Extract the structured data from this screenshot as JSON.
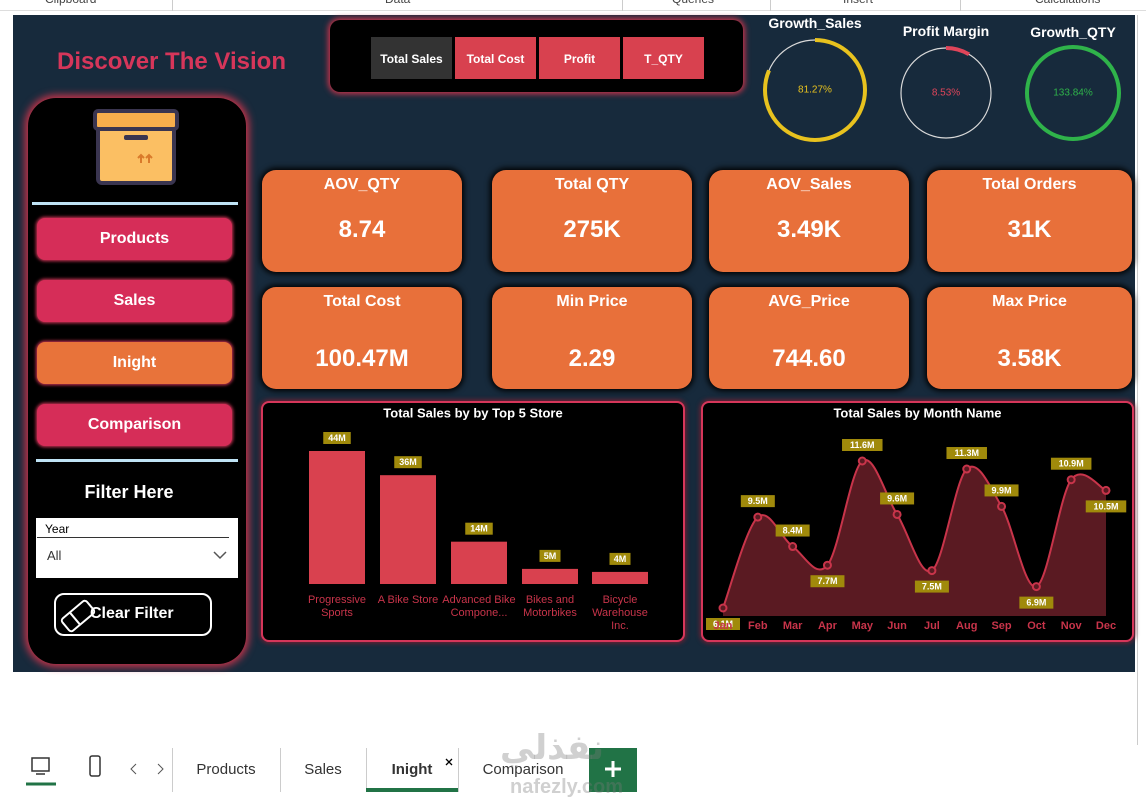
{
  "toolbar": [
    "Clipboard",
    "Data",
    "Queries",
    "Insert",
    "Calculations"
  ],
  "header": {
    "title": "Discover The Vision"
  },
  "measure_buttons": [
    "Total Sales",
    "Total Cost",
    "Profit",
    "T_QTY"
  ],
  "gauges": [
    {
      "label": "Growth_Sales",
      "value": 81.27,
      "value_label": "81.27%",
      "color": "#e8c21e"
    },
    {
      "label": "Profit Margin",
      "value": 8.53,
      "value_label": "8.53%",
      "color": "#e0455a"
    },
    {
      "label": "Growth_QTY",
      "value": 133.84,
      "value_label": "133.84%",
      "color": "#2fb34a"
    }
  ],
  "nav": [
    "Products",
    "Sales",
    "Inight",
    "Comparison"
  ],
  "filter": {
    "title": "Filter Here",
    "field": "Year",
    "selection": "All",
    "clear_button": "Clear Filter"
  },
  "kpis": [
    {
      "label": "AOV_QTY",
      "value": "8.74"
    },
    {
      "label": "Total QTY",
      "value": "275K"
    },
    {
      "label": "AOV_Sales",
      "value": "3.49K"
    },
    {
      "label": "Total Orders",
      "value": "31K"
    },
    {
      "label": "Total Cost",
      "value": "100.47M"
    },
    {
      "label": "Min Price",
      "value": "2.29"
    },
    {
      "label": "AVG_Price",
      "value": "744.60"
    },
    {
      "label": "Max Price",
      "value": "3.58K"
    }
  ],
  "chart_data": [
    {
      "type": "bar",
      "title": "Total Sales by by Top 5 Store",
      "categories": [
        "Progressive Sports",
        "A Bike Store",
        "Advanced Bike Compone...",
        "Bikes and Motorbikes",
        "Bicycle Warehouse Inc."
      ],
      "values": [
        44,
        36,
        14,
        5,
        4
      ],
      "value_labels": [
        "44M",
        "36M",
        "14M",
        "5M",
        "4M"
      ],
      "color": "#d9414f"
    },
    {
      "type": "line",
      "title": "Total Sales by Month Name",
      "categories": [
        "Jan",
        "Feb",
        "Mar",
        "Apr",
        "May",
        "Jun",
        "Jul",
        "Aug",
        "Sep",
        "Oct",
        "Nov",
        "Dec"
      ],
      "values": [
        6.1,
        9.5,
        8.4,
        7.7,
        11.6,
        9.6,
        7.5,
        11.3,
        9.9,
        6.9,
        10.9,
        10.5
      ],
      "value_labels": [
        "6.1M",
        "9.5M",
        "8.4M",
        "7.7M",
        "11.6M",
        "9.6M",
        "7.5M",
        "11.3M",
        "9.9M",
        "6.9M",
        "10.9M",
        "10.5M"
      ],
      "color": "#c8344a",
      "area": true
    }
  ],
  "page_tabs": [
    "Products",
    "Sales",
    "Inight",
    "Comparison"
  ],
  "watermark": [
    "نفذلي",
    "nafezly.com"
  ]
}
